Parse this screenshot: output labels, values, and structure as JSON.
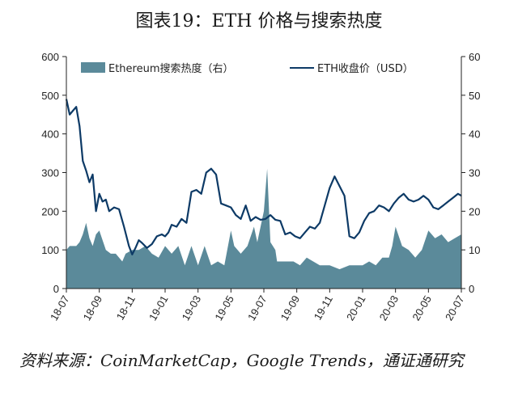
{
  "title": "图表19：ETH 价格与搜索热度",
  "source": "资料来源：CoinMarketCap，Google Trends，通证通研究",
  "colors": {
    "area": "#5b8a9a",
    "line": "#0d3a66",
    "axis": "#222222"
  },
  "chart_data": {
    "type": "line",
    "title": "图表19：ETH 价格与搜索热度",
    "legend_placement": "top",
    "grid": false,
    "x_categories": [
      "18-07",
      "18-09",
      "18-11",
      "19-01",
      "19-03",
      "19-05",
      "19-07",
      "19-09",
      "19-11",
      "20-01",
      "20-03",
      "20-05",
      "20-07"
    ],
    "y_left": {
      "range": [
        0,
        600
      ],
      "ticks": [
        "0",
        "100",
        "200",
        "300",
        "400",
        "500",
        "600"
      ]
    },
    "y_right": {
      "range": [
        0,
        60
      ],
      "ticks": [
        "0",
        "10",
        "20",
        "30",
        "40",
        "50",
        "60"
      ]
    },
    "series": [
      {
        "name": "Ethereum搜索热度（右）",
        "type": "area",
        "axis": "right",
        "x": [
          0,
          0.1,
          0.2,
          0.3,
          0.4,
          0.5,
          0.6,
          0.7,
          0.8,
          0.9,
          1.0,
          1.2,
          1.35,
          1.5,
          1.7,
          1.8,
          2.0,
          2.2,
          2.4,
          2.6,
          2.8,
          3.0,
          3.2,
          3.4,
          3.6,
          3.8,
          4.0,
          4.2,
          4.4,
          4.6,
          4.8,
          5.0,
          5.1,
          5.3,
          5.5,
          5.7,
          5.8,
          6.0,
          6.1,
          6.2,
          6.35,
          6.4,
          6.5,
          6.7,
          6.9,
          7.1,
          7.3,
          7.5,
          7.7,
          8.0,
          8.3,
          8.6,
          8.8,
          9.0,
          9.2,
          9.4,
          9.6,
          9.8,
          9.9,
          10.0,
          10.2,
          10.4,
          10.6,
          10.8,
          11.0,
          11.2,
          11.4,
          11.6,
          11.8,
          12.0
        ],
        "values": [
          10,
          11,
          11,
          11,
          12,
          14,
          17,
          13,
          11,
          14,
          15,
          10,
          9,
          9,
          7,
          9,
          10,
          10,
          11,
          9,
          8,
          11,
          9,
          11,
          6,
          11,
          6,
          11,
          6,
          7,
          6,
          15,
          11,
          9,
          11,
          16,
          12,
          20,
          31,
          12,
          10,
          7,
          7,
          7,
          7,
          6,
          8,
          7,
          6,
          6,
          5,
          6,
          6,
          6,
          7,
          6,
          8,
          8,
          11,
          16,
          11,
          10,
          8,
          10,
          15,
          13,
          14,
          12,
          13,
          14
        ]
      },
      {
        "name": "ETH收盘价（USD）",
        "type": "line",
        "axis": "left",
        "x": [
          0,
          0.1,
          0.2,
          0.3,
          0.4,
          0.5,
          0.6,
          0.7,
          0.8,
          0.9,
          1.0,
          1.1,
          1.2,
          1.3,
          1.45,
          1.6,
          1.75,
          1.9,
          2.0,
          2.1,
          2.2,
          2.3,
          2.45,
          2.6,
          2.75,
          2.9,
          3.0,
          3.1,
          3.2,
          3.35,
          3.5,
          3.65,
          3.8,
          3.95,
          4.1,
          4.25,
          4.4,
          4.55,
          4.7,
          4.85,
          5.0,
          5.15,
          5.3,
          5.45,
          5.6,
          5.75,
          5.9,
          6.05,
          6.2,
          6.35,
          6.5,
          6.65,
          6.8,
          6.95,
          7.1,
          7.25,
          7.4,
          7.55,
          7.7,
          7.85,
          8.0,
          8.15,
          8.3,
          8.45,
          8.6,
          8.75,
          8.9,
          9.05,
          9.2,
          9.35,
          9.5,
          9.65,
          9.8,
          9.95,
          10.1,
          10.25,
          10.4,
          10.55,
          10.7,
          10.85,
          11.0,
          11.15,
          11.3,
          11.45,
          11.6,
          11.75,
          11.9,
          12.0
        ],
        "values": [
          490,
          450,
          460,
          470,
          420,
          330,
          305,
          275,
          295,
          200,
          245,
          225,
          230,
          200,
          210,
          205,
          160,
          110,
          88,
          105,
          125,
          118,
          105,
          115,
          135,
          140,
          135,
          145,
          165,
          160,
          180,
          170,
          250,
          255,
          245,
          300,
          310,
          295,
          220,
          215,
          210,
          190,
          180,
          215,
          175,
          185,
          178,
          180,
          190,
          178,
          175,
          140,
          145,
          135,
          130,
          145,
          160,
          155,
          170,
          215,
          260,
          290,
          265,
          240,
          135,
          130,
          145,
          175,
          195,
          200,
          215,
          210,
          200,
          220,
          235,
          245,
          230,
          225,
          230,
          240,
          230,
          210,
          205,
          215,
          225,
          235,
          245,
          240
        ]
      }
    ]
  }
}
